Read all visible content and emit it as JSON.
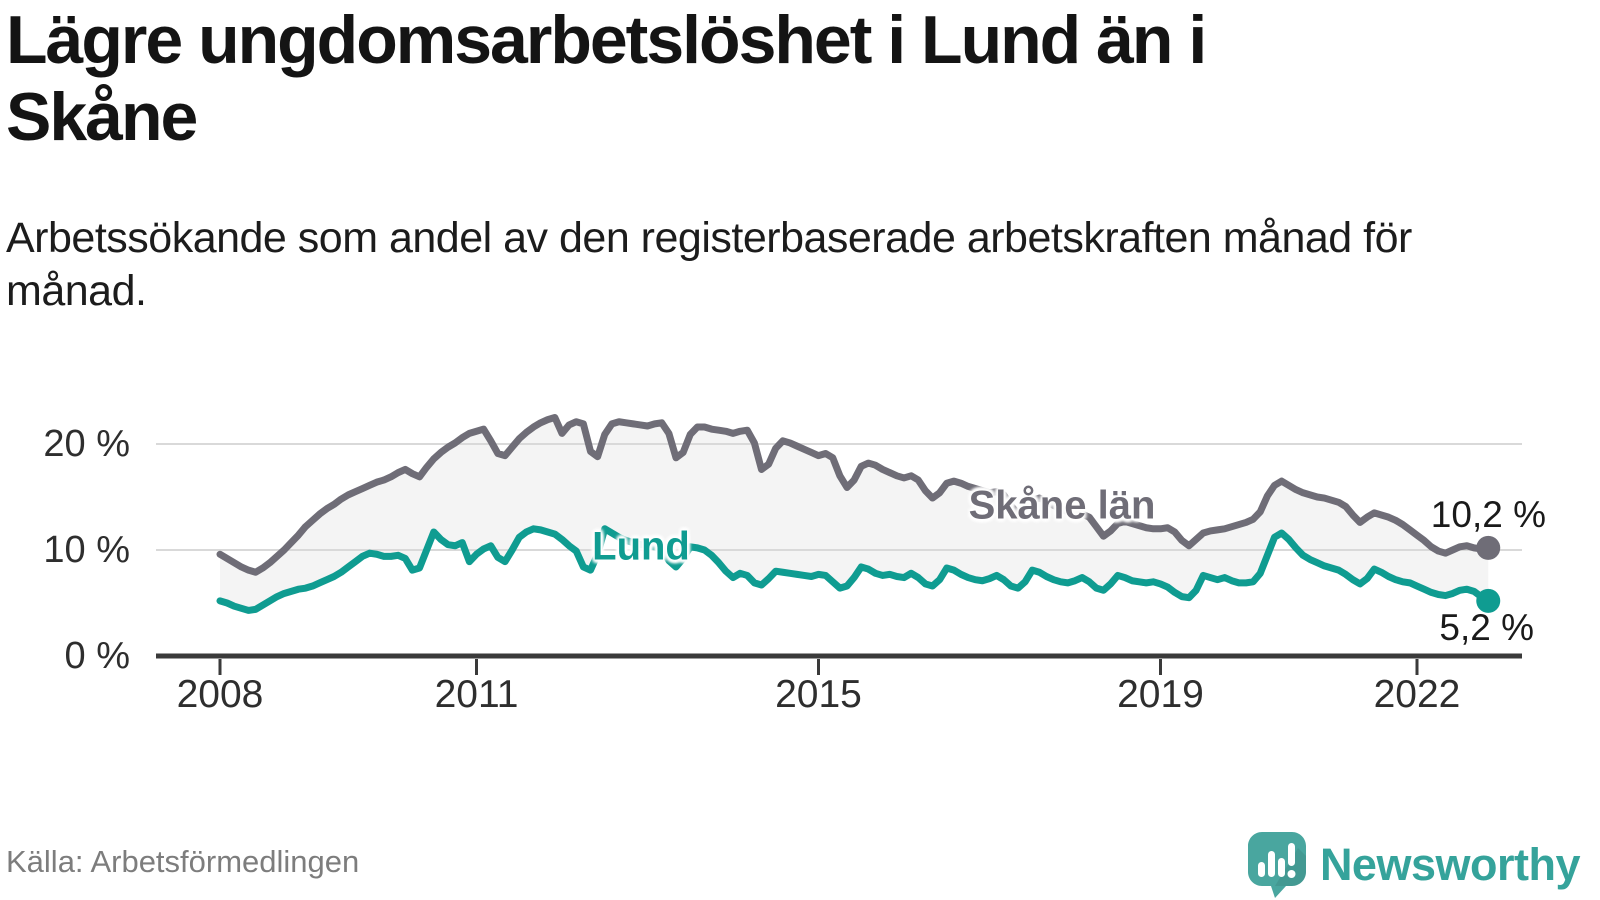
{
  "header": {
    "title_line1": "Lägre ungdomsarbetslöshet i Lund än i",
    "title_line2": "Skåne",
    "subtitle": "Arbetssökande som andel av den registerbaserade arbetskraften månad för månad."
  },
  "footer": {
    "source": "Källa: Arbetsförmedlingen",
    "brand": "Newsworthy",
    "logo_icon": "speech-bubble-bar-chart-icon"
  },
  "colors": {
    "skane_line": "#6f6d77",
    "lund_line": "#0f9c91",
    "band_fill": "#f4f4f4",
    "gridline": "#d9d9d9",
    "axis": "#3a3a3a",
    "title_text": "#141414",
    "source_text": "#7d7d7d",
    "logo_teal": "#49a69f"
  },
  "chart_data": {
    "type": "line",
    "unit": "%",
    "frequency": "monthly",
    "start": {
      "year": 2008,
      "month": 1
    },
    "end": {
      "year": 2022,
      "month": 11
    },
    "grid": "horizontal-only",
    "band_fill_between_series": true,
    "x_axis": {
      "ticks": [
        2008,
        2011,
        2015,
        2019,
        2022
      ]
    },
    "y_axis": {
      "range": [
        0,
        24
      ],
      "ticks": [
        {
          "value": 0,
          "label": "0 %"
        },
        {
          "value": 10,
          "label": "10 %"
        },
        {
          "value": 20,
          "label": "20 %"
        }
      ]
    },
    "series": [
      {
        "name": "Skåne län",
        "color": "#6f6d77",
        "end_label": "10,2 %",
        "end_value": 10.2,
        "values": [
          9.6,
          9.2,
          8.8,
          8.4,
          8.1,
          7.9,
          8.3,
          8.8,
          9.4,
          10.0,
          10.7,
          11.4,
          12.2,
          12.8,
          13.4,
          13.9,
          14.3,
          14.8,
          15.2,
          15.5,
          15.8,
          16.1,
          16.4,
          16.6,
          16.9,
          17.3,
          17.6,
          17.2,
          16.9,
          17.8,
          18.6,
          19.2,
          19.7,
          20.1,
          20.6,
          21.0,
          21.2,
          21.4,
          20.3,
          19.1,
          18.9,
          19.7,
          20.5,
          21.1,
          21.6,
          22.0,
          22.3,
          22.5,
          21.0,
          21.8,
          22.1,
          21.9,
          19.3,
          18.8,
          20.9,
          21.9,
          22.1,
          22.0,
          21.9,
          21.8,
          21.7,
          21.9,
          22.0,
          21.0,
          18.7,
          19.2,
          20.9,
          21.6,
          21.6,
          21.4,
          21.3,
          21.2,
          21.0,
          21.2,
          21.3,
          20.1,
          17.6,
          18.1,
          19.6,
          20.3,
          20.1,
          19.8,
          19.5,
          19.2,
          18.9,
          19.1,
          18.7,
          17.0,
          15.9,
          16.6,
          17.9,
          18.2,
          18.0,
          17.6,
          17.3,
          17.0,
          16.8,
          17.0,
          16.6,
          15.6,
          14.9,
          15.4,
          16.3,
          16.5,
          16.3,
          16.0,
          15.8,
          15.6,
          15.4,
          15.5,
          15.2,
          14.2,
          13.4,
          13.9,
          14.7,
          14.9,
          14.6,
          14.2,
          13.9,
          13.6,
          13.3,
          13.4,
          13.1,
          12.2,
          11.3,
          11.8,
          12.5,
          12.7,
          12.5,
          12.3,
          12.1,
          12.0,
          12.0,
          12.1,
          11.7,
          10.9,
          10.4,
          11.0,
          11.6,
          11.8,
          11.9,
          12.0,
          12.2,
          12.4,
          12.6,
          12.9,
          13.6,
          15.1,
          16.1,
          16.5,
          16.1,
          15.7,
          15.4,
          15.2,
          15.0,
          14.9,
          14.7,
          14.5,
          14.1,
          13.3,
          12.6,
          13.1,
          13.5,
          13.3,
          13.1,
          12.8,
          12.4,
          11.9,
          11.4,
          10.9,
          10.3,
          9.9,
          9.7,
          10.0,
          10.3,
          10.4,
          10.2,
          10.1,
          10.2
        ]
      },
      {
        "name": "Lund",
        "color": "#0f9c91",
        "end_label": "5,2 %",
        "end_value": 5.2,
        "values": [
          5.2,
          5.0,
          4.7,
          4.5,
          4.3,
          4.4,
          4.8,
          5.2,
          5.6,
          5.9,
          6.1,
          6.3,
          6.4,
          6.6,
          6.9,
          7.2,
          7.5,
          7.9,
          8.4,
          8.9,
          9.4,
          9.7,
          9.6,
          9.4,
          9.4,
          9.5,
          9.2,
          8.1,
          8.3,
          10.0,
          11.7,
          11.0,
          10.5,
          10.4,
          10.7,
          8.9,
          9.6,
          10.1,
          10.4,
          9.3,
          8.9,
          10.0,
          11.2,
          11.7,
          12.0,
          11.9,
          11.7,
          11.5,
          11.0,
          10.4,
          9.9,
          8.4,
          8.1,
          9.6,
          12.0,
          11.6,
          11.2,
          10.9,
          10.7,
          10.5,
          10.4,
          10.3,
          10.1,
          9.0,
          8.4,
          9.2,
          10.3,
          10.2,
          10.0,
          9.5,
          8.8,
          8.0,
          7.4,
          7.8,
          7.6,
          6.9,
          6.7,
          7.3,
          8.0,
          7.9,
          7.8,
          7.7,
          7.6,
          7.5,
          7.7,
          7.6,
          7.0,
          6.4,
          6.6,
          7.4,
          8.4,
          8.2,
          7.8,
          7.6,
          7.7,
          7.5,
          7.4,
          7.8,
          7.4,
          6.8,
          6.6,
          7.2,
          8.3,
          8.1,
          7.7,
          7.4,
          7.2,
          7.1,
          7.3,
          7.6,
          7.2,
          6.6,
          6.4,
          7.0,
          8.1,
          7.9,
          7.5,
          7.2,
          7.0,
          6.9,
          7.1,
          7.4,
          7.0,
          6.4,
          6.2,
          6.8,
          7.6,
          7.4,
          7.1,
          7.0,
          6.9,
          7.0,
          6.8,
          6.5,
          6.0,
          5.6,
          5.5,
          6.2,
          7.6,
          7.4,
          7.2,
          7.4,
          7.1,
          6.9,
          6.9,
          7.0,
          7.8,
          9.5,
          11.2,
          11.6,
          11.0,
          10.2,
          9.5,
          9.1,
          8.8,
          8.5,
          8.3,
          8.1,
          7.7,
          7.2,
          6.8,
          7.3,
          8.2,
          7.9,
          7.5,
          7.2,
          7.0,
          6.9,
          6.6,
          6.3,
          6.0,
          5.8,
          5.7,
          5.9,
          6.2,
          6.3,
          6.1,
          5.6,
          5.2
        ]
      }
    ]
  }
}
